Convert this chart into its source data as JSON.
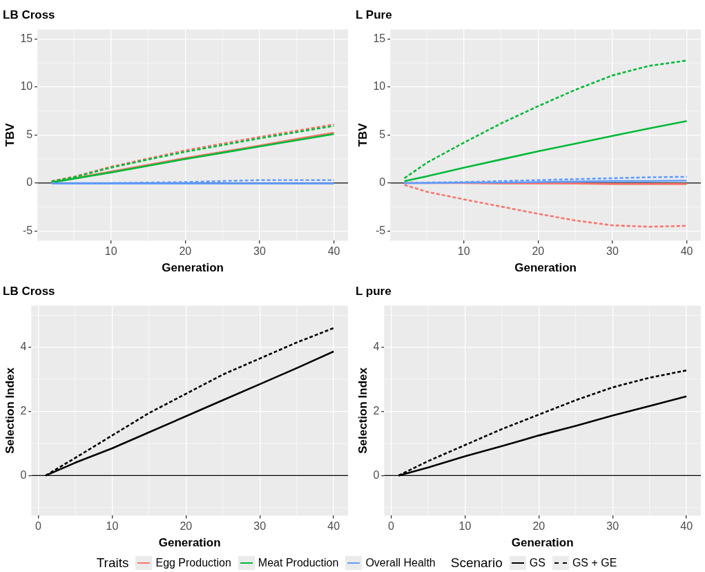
{
  "chart_data": [
    {
      "type": "line",
      "title": "LB Cross",
      "xlabel": "Generation",
      "ylabel": "TBV",
      "legend_title": "Traits",
      "legend": "bottom",
      "grid": true,
      "marker": "none",
      "x": [
        2,
        5,
        10,
        15,
        20,
        25,
        30,
        35,
        40
      ],
      "xlim": [
        0.1,
        41.9
      ],
      "xticks": [
        10,
        20,
        30,
        40
      ],
      "ylim": [
        -6,
        16
      ],
      "yticks": [
        -5,
        0,
        5,
        10,
        15
      ],
      "ref_lines": [
        {
          "axis": "y",
          "value": 0,
          "color": "#000000"
        }
      ],
      "series": [
        {
          "name": "Egg Production",
          "color": "#f8766d",
          "line_style": "solid",
          "values": [
            0.1,
            0.5,
            1.2,
            1.9,
            2.6,
            3.25,
            3.9,
            4.6,
            5.25
          ]
        },
        {
          "name": "Meat Production",
          "color": "#00ba38",
          "line_style": "solid",
          "values": [
            0.05,
            0.45,
            1.1,
            1.8,
            2.5,
            3.15,
            3.8,
            4.45,
            5.1
          ]
        },
        {
          "name": "Overall Health",
          "color": "#619cff",
          "line_style": "solid",
          "values": [
            -0.05,
            -0.05,
            -0.05,
            -0.05,
            -0.05,
            -0.05,
            -0.05,
            -0.05,
            -0.05
          ]
        },
        {
          "color": "#f8766d",
          "line_style": "dashed",
          "values": [
            0.2,
            0.65,
            1.7,
            2.55,
            3.4,
            4.1,
            4.8,
            5.45,
            6.1
          ]
        },
        {
          "color": "#00ba38",
          "line_style": "dashed",
          "values": [
            0.15,
            0.6,
            1.6,
            2.45,
            3.25,
            3.95,
            4.65,
            5.3,
            5.95
          ]
        },
        {
          "color": "#619cff",
          "line_style": "dashed",
          "values": [
            0,
            0,
            0,
            0.05,
            0.1,
            0.2,
            0.3,
            0.3,
            0.3
          ]
        }
      ]
    },
    {
      "type": "line",
      "title": "L Pure",
      "xlabel": "Generation",
      "ylabel": "TBV",
      "grid": true,
      "marker": "none",
      "x": [
        2,
        5,
        10,
        15,
        20,
        25,
        30,
        35,
        40
      ],
      "xlim": [
        0.1,
        41.9
      ],
      "xticks": [
        10,
        20,
        30,
        40
      ],
      "ylim": [
        -6,
        16
      ],
      "yticks": [
        -5,
        0,
        5,
        10,
        15
      ],
      "ref_lines": [
        {
          "axis": "y",
          "value": 0,
          "color": "#000000"
        }
      ],
      "series": [
        {
          "color": "#f8766d",
          "line_style": "solid",
          "values": [
            0,
            0,
            0,
            -0.05,
            -0.05,
            -0.05,
            -0.1,
            -0.1,
            -0.1
          ]
        },
        {
          "color": "#00ba38",
          "line_style": "solid",
          "values": [
            0.2,
            0.7,
            1.6,
            2.45,
            3.3,
            4.1,
            4.9,
            5.7,
            6.45
          ]
        },
        {
          "color": "#619cff",
          "line_style": "solid",
          "values": [
            0,
            0,
            0.05,
            0.05,
            0.1,
            0.15,
            0.2,
            0.2,
            0.25
          ]
        },
        {
          "color": "#f8766d",
          "line_style": "dashed",
          "values": [
            -0.2,
            -0.9,
            -1.7,
            -2.45,
            -3.2,
            -3.9,
            -4.4,
            -4.55,
            -4.45
          ]
        },
        {
          "color": "#00ba38",
          "line_style": "dashed",
          "values": [
            0.5,
            2.1,
            4.2,
            6.2,
            8.0,
            9.7,
            11.2,
            12.2,
            12.75
          ]
        },
        {
          "color": "#619cff",
          "line_style": "dashed",
          "values": [
            0,
            0.05,
            0.1,
            0.2,
            0.3,
            0.4,
            0.5,
            0.6,
            0.65
          ]
        }
      ]
    },
    {
      "type": "line",
      "title": "LB Cross",
      "xlabel": "Generation",
      "ylabel": "Selection Index",
      "legend_title": "Scenario",
      "legend": "bottom",
      "grid": true,
      "marker": "none",
      "x": [
        1,
        5,
        10,
        15,
        20,
        25,
        30,
        35,
        40
      ],
      "xlim": [
        -0.95,
        41.95
      ],
      "xticks": [
        0,
        10,
        20,
        30,
        40
      ],
      "ylim": [
        -1.25,
        5.3
      ],
      "yticks": [
        0,
        2,
        4
      ],
      "ref_lines": [
        {
          "axis": "y",
          "value": 0,
          "color": "#000000"
        }
      ],
      "series": [
        {
          "name": "GS",
          "color": "#000000",
          "line_style": "solid",
          "values": [
            0,
            0.4,
            0.85,
            1.35,
            1.85,
            2.35,
            2.85,
            3.35,
            3.87
          ]
        },
        {
          "name": "GS + GE",
          "color": "#000000",
          "line_style": "dashed",
          "values": [
            0,
            0.55,
            1.25,
            1.95,
            2.55,
            3.15,
            3.65,
            4.15,
            4.6
          ]
        }
      ]
    },
    {
      "type": "line",
      "title": "L pure",
      "xlabel": "Generation",
      "ylabel": "Selection Index",
      "grid": true,
      "marker": "none",
      "x": [
        1,
        5,
        10,
        15,
        20,
        25,
        30,
        35,
        40
      ],
      "xlim": [
        -0.95,
        41.95
      ],
      "xticks": [
        0,
        10,
        20,
        30,
        40
      ],
      "ylim": [
        -1.25,
        5.3
      ],
      "yticks": [
        0,
        2,
        4
      ],
      "ref_lines": [
        {
          "axis": "y",
          "value": 0,
          "color": "#000000"
        }
      ],
      "series": [
        {
          "color": "#000000",
          "line_style": "solid",
          "values": [
            0,
            0.25,
            0.6,
            0.92,
            1.25,
            1.55,
            1.87,
            2.17,
            2.47
          ]
        },
        {
          "color": "#000000",
          "line_style": "dashed",
          "values": [
            0,
            0.45,
            0.95,
            1.45,
            1.9,
            2.35,
            2.75,
            3.05,
            3.28
          ]
        }
      ]
    }
  ]
}
